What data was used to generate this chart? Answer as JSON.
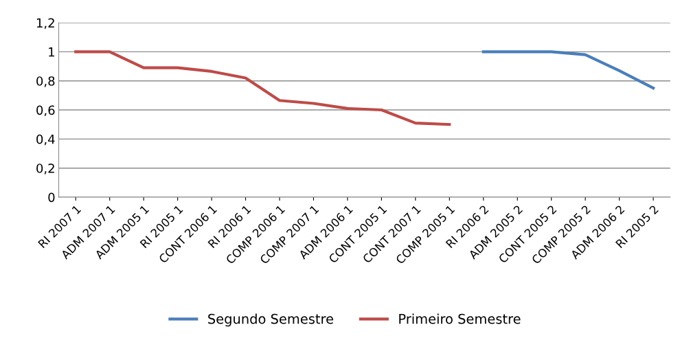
{
  "chart_data": {
    "type": "line",
    "categories": [
      "RI 2007 1",
      "ADM 2007 1",
      "ADM 2005 1",
      "RI 2005 1",
      "CONT 2006 1",
      "RI 2006 1",
      "COMP 2006 1",
      "COMP 2007 1",
      "ADM 2006 1",
      "CONT 2005 1",
      "CONT 2007 1",
      "COMP 2005 1",
      "RI 2006 2",
      "ADM 2005 2",
      "CONT 2005 2",
      "COMP 2005 2",
      "ADM 2006 2",
      "RI 2005 2"
    ],
    "series": [
      {
        "name": "Segundo Semestre",
        "color": "#4a7ebb",
        "values": [
          null,
          null,
          null,
          null,
          null,
          null,
          null,
          null,
          null,
          null,
          null,
          null,
          1,
          1,
          1,
          0.98,
          0.87,
          0.75
        ]
      },
      {
        "name": "Primeiro Semestre",
        "color": "#be4b48",
        "values": [
          1,
          1,
          0.89,
          0.89,
          0.865,
          0.82,
          0.665,
          0.645,
          0.61,
          0.6,
          0.51,
          0.5,
          null,
          null,
          null,
          null,
          null,
          null
        ]
      }
    ],
    "ylim": [
      0,
      1.2
    ],
    "yticks": [
      0,
      {
        "value": 0.2,
        "label": "0,2"
      },
      {
        "value": 0.4,
        "label": "0,4"
      },
      {
        "value": 0.6,
        "label": "0,6"
      },
      {
        "value": 0.8,
        "label": "0,8"
      },
      1,
      {
        "value": 1.2,
        "label": "1,2"
      }
    ],
    "grid": "y",
    "legend": "bottom",
    "marker": "none",
    "line_style": "solid"
  }
}
